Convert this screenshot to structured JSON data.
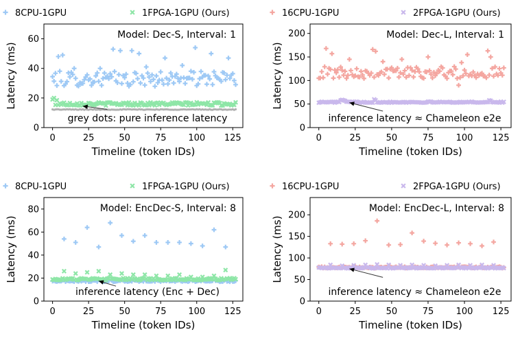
{
  "charts": [
    {
      "type": "scatter",
      "title": "",
      "annotation_title": "Model: Dec-S, Interval: 1",
      "note": "grey dots: pure inference latency",
      "xlabel": "Timeline (token IDs)",
      "ylabel": "Latency (ms)",
      "xlim": [
        -6,
        132
      ],
      "ylim": [
        0,
        70
      ],
      "xticks": [
        0,
        25,
        50,
        75,
        100,
        125
      ],
      "yticks": [
        0,
        20,
        40,
        60
      ],
      "grid": false,
      "legend": "above, 2 columns",
      "token_count": 128,
      "arrow": {
        "from": [
          38,
          12.3
        ],
        "to": [
          21,
          14.5
        ]
      },
      "series": [
        {
          "name": "8CPU-1GPU",
          "marker": "plus",
          "color": "#9ec9f5",
          "interval": 1,
          "base": 33,
          "spread": 3.2,
          "outliers": [
            [
              4,
              48
            ],
            [
              7,
              49
            ],
            [
              42,
              53
            ],
            [
              47,
              52
            ],
            [
              55,
              52
            ],
            [
              60,
              50
            ],
            [
              78,
              47
            ],
            [
              99,
              54
            ],
            [
              110,
              50
            ],
            [
              122,
              47
            ],
            [
              15,
              40
            ],
            [
              33,
              40
            ],
            [
              65,
              41
            ],
            [
              90,
              42
            ]
          ]
        },
        {
          "name": "1FPGA-1GPU (Ours)",
          "marker": "x",
          "color": "#8ee6a7",
          "interval": 1,
          "base": 16,
          "spread": 0.7,
          "outliers": [
            [
              0,
              19
            ],
            [
              1,
              20
            ],
            [
              3,
              18.5
            ]
          ]
        },
        {
          "name": "pure inference",
          "legend": false,
          "marker": "dot",
          "color": "#b0b0b0",
          "interval": 1,
          "base": 12.2,
          "spread": 0.15,
          "outliers": []
        }
      ]
    },
    {
      "type": "scatter",
      "title": "",
      "annotation_title": "Model: Dec-L, Interval: 1",
      "note": "inference latency ≈ Chameleon e2e",
      "xlabel": "Timeline (token IDs)",
      "ylabel": "Latency (ms)",
      "xlim": [
        -6,
        132
      ],
      "ylim": [
        0,
        220
      ],
      "xticks": [
        0,
        25,
        50,
        75,
        100,
        125
      ],
      "yticks": [
        0,
        50,
        100,
        150,
        200
      ],
      "grid": false,
      "legend": "above, 2 columns",
      "token_count": 128,
      "arrow": {
        "from": [
          44,
          35
        ],
        "to": [
          21,
          53
        ]
      },
      "series": [
        {
          "name": "16CPU-1GPU",
          "marker": "plus",
          "color": "#f4a6a0",
          "interval": 1,
          "base": 117,
          "spread": 8,
          "outliers": [
            [
              5,
              168
            ],
            [
              9,
              157
            ],
            [
              21,
              145
            ],
            [
              37,
              166
            ],
            [
              39,
              162
            ],
            [
              44,
              140
            ],
            [
              57,
              145
            ],
            [
              75,
              150
            ],
            [
              98,
              138
            ],
            [
              102,
              155
            ],
            [
              116,
              163
            ],
            [
              118,
              150
            ],
            [
              96,
              90
            ]
          ]
        },
        {
          "name": "2FPGA-1GPU (Ours)",
          "marker": "x",
          "color": "#c9b8ec",
          "interval": 1,
          "base": 54,
          "spread": 0.8,
          "outliers": [
            [
              15,
              58
            ],
            [
              16,
              59
            ],
            [
              17,
              58
            ],
            [
              18,
              57
            ],
            [
              38,
              60
            ],
            [
              39,
              58
            ],
            [
              117,
              58
            ],
            [
              118,
              57
            ]
          ]
        }
      ]
    },
    {
      "type": "scatter",
      "title": "",
      "annotation_title": "Model: EncDec-S, Interval: 8",
      "note": "inference latency (Enc + Dec)",
      "xlabel": "Timeline (token IDs)",
      "ylabel": "Latency (ms)",
      "xlim": [
        -6,
        132
      ],
      "ylim": [
        0,
        90
      ],
      "xticks": [
        0,
        25,
        50,
        75,
        100,
        125
      ],
      "yticks": [
        0,
        20,
        40,
        60,
        80
      ],
      "grid": false,
      "legend": "above, 2 columns",
      "token_count": 128,
      "arrow": {
        "from": [
          44,
          13
        ],
        "to": [
          32,
          17.5
        ]
      },
      "series": [
        {
          "name": "8CPU-1GPU",
          "marker": "plus",
          "color": "#9ec9f5",
          "interval": 8,
          "base": 17.5,
          "spread": 0.4,
          "spikes": [
            [
              8,
              54
            ],
            [
              16,
              51
            ],
            [
              24,
              64
            ],
            [
              32,
              47
            ],
            [
              40,
              68
            ],
            [
              48,
              57
            ],
            [
              56,
              52
            ],
            [
              64,
              57
            ],
            [
              72,
              51
            ],
            [
              80,
              51
            ],
            [
              88,
              51
            ],
            [
              96,
              50
            ],
            [
              104,
              48
            ],
            [
              112,
              62
            ],
            [
              120,
              47
            ]
          ]
        },
        {
          "name": "1FPGA-1GPU (Ours)",
          "marker": "x",
          "color": "#8ee6a7",
          "interval": 8,
          "base": 19,
          "spread": 0.6,
          "spikes": [
            [
              8,
              26
            ],
            [
              16,
              24
            ],
            [
              24,
              25
            ],
            [
              32,
              26
            ],
            [
              40,
              23
            ],
            [
              48,
              24
            ],
            [
              56,
              23
            ],
            [
              64,
              23
            ],
            [
              72,
              22
            ],
            [
              80,
              22
            ],
            [
              88,
              23
            ],
            [
              96,
              21
            ],
            [
              104,
              21
            ],
            [
              112,
              22
            ],
            [
              120,
              27
            ]
          ]
        }
      ]
    },
    {
      "type": "scatter",
      "title": "",
      "annotation_title": "Model: EncDec-L, Interval: 8",
      "note": "inference latency ≈ Chameleon e2e",
      "xlabel": "Timeline (token IDs)",
      "ylabel": "Latency (ms)",
      "xlim": [
        -6,
        132
      ],
      "ylim": [
        0,
        240
      ],
      "xticks": [
        0,
        25,
        50,
        75,
        100,
        125
      ],
      "yticks": [
        0,
        50,
        100,
        150,
        200
      ],
      "grid": false,
      "legend": "above, 2 columns",
      "token_count": 128,
      "arrow": {
        "from": [
          44,
          55
        ],
        "to": [
          21,
          75
        ]
      },
      "series": [
        {
          "name": "16CPU-1GPU",
          "marker": "plus",
          "color": "#f4a6a0",
          "interval": 8,
          "base": 78,
          "spread": 1.0,
          "spikes": [
            [
              8,
              133
            ],
            [
              16,
              132
            ],
            [
              24,
              133
            ],
            [
              32,
              140
            ],
            [
              40,
              186
            ],
            [
              48,
              130
            ],
            [
              56,
              131
            ],
            [
              64,
              158
            ],
            [
              72,
              139
            ],
            [
              80,
              134
            ],
            [
              88,
              130
            ],
            [
              96,
              135
            ],
            [
              104,
              133
            ],
            [
              112,
              128
            ],
            [
              120,
              137
            ]
          ]
        },
        {
          "name": "2FPGA-1GPU (Ours)",
          "marker": "x",
          "color": "#c9b8ec",
          "interval": 8,
          "base": 77,
          "spread": 0.8,
          "spikes": [
            [
              8,
              84
            ],
            [
              16,
              82
            ],
            [
              24,
              83
            ],
            [
              32,
              84
            ],
            [
              40,
              85
            ],
            [
              48,
              84
            ],
            [
              56,
              83
            ],
            [
              64,
              84
            ],
            [
              72,
              83
            ],
            [
              80,
              82
            ],
            [
              88,
              83
            ],
            [
              96,
              84
            ],
            [
              104,
              83
            ],
            [
              112,
              84
            ],
            [
              120,
              83
            ]
          ]
        }
      ]
    }
  ]
}
